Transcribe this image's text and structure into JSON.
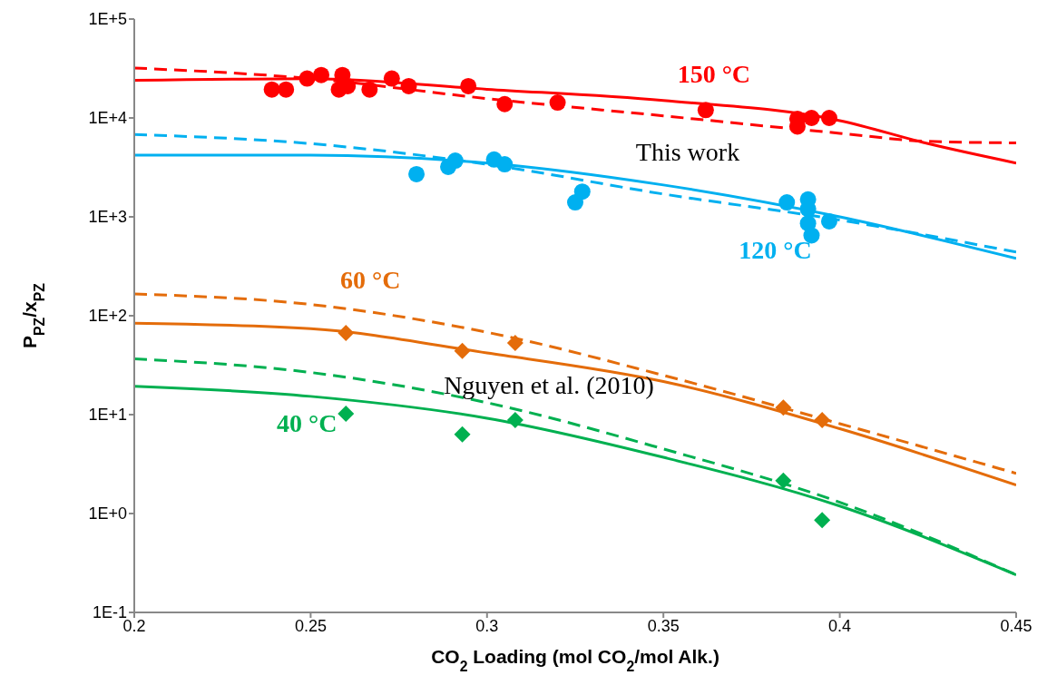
{
  "chart_data": {
    "type": "scatter",
    "xlabel": "CO$_{2}$ Loading (mol CO$_{2}$/mol Alk.)",
    "ylabel": "P$_{PZ}$/x$_{PZ}$",
    "log": "y",
    "grid": false,
    "legend": false,
    "xlim": [
      0.2,
      0.45
    ],
    "xticks": [
      0.2,
      0.25,
      0.3,
      0.35,
      0.4,
      0.45
    ],
    "ylim": [
      0.1,
      100000
    ],
    "yticks": [
      {
        "value": 0.1,
        "label": "1E-1"
      },
      {
        "value": 1,
        "label": "1E+0"
      },
      {
        "value": 10,
        "label": "1E+1"
      },
      {
        "value": 100,
        "label": "1E+2"
      },
      {
        "value": 1000,
        "label": "1E+3"
      },
      {
        "value": 10000,
        "label": "1E+4"
      },
      {
        "value": 100000,
        "label": "1E+5"
      }
    ],
    "annotations": [
      "This work",
      "Nguyen et al. (2010)"
    ],
    "series": [
      {
        "name": "150 °C",
        "color": "#ff0000",
        "marker": "circle",
        "x": [
          0.239,
          0.243,
          0.249,
          0.253,
          0.258,
          0.259,
          0.2605,
          0.2667,
          0.273,
          0.2778,
          0.2947,
          0.305,
          0.32,
          0.362,
          0.388,
          0.388,
          0.392,
          0.397
        ],
        "values": [
          19400,
          19400,
          25000,
          27200,
          19400,
          27200,
          21000,
          19400,
          25000,
          21000,
          21000,
          13800,
          14300,
          12000,
          9800,
          8200,
          10000,
          10000
        ]
      },
      {
        "type": "line",
        "color": "#ff0000",
        "marker": "none",
        "line_style": "solid",
        "x": [
          0.2,
          0.25,
          0.3,
          0.35,
          0.4,
          0.425,
          0.45
        ],
        "values": [
          24000,
          25000,
          19500,
          15000,
          9400,
          5500,
          3500
        ]
      },
      {
        "type": "line",
        "color": "#ff0000",
        "marker": "none",
        "line_style": "dashed",
        "x": [
          0.2,
          0.25,
          0.3,
          0.35,
          0.4,
          0.425,
          0.45
        ],
        "values": [
          32000,
          25000,
          15700,
          10500,
          7000,
          5800,
          5600
        ]
      },
      {
        "name": "120 °C",
        "color": "#00b0f0",
        "marker": "circle",
        "x": [
          0.28,
          0.289,
          0.291,
          0.302,
          0.305,
          0.325,
          0.327,
          0.385,
          0.391,
          0.391,
          0.391,
          0.392,
          0.396,
          0.397
        ],
        "values": [
          2700,
          3200,
          3700,
          3800,
          3400,
          1400,
          1800,
          1400,
          1500,
          1200,
          860,
          650,
          null,
          900
        ]
      },
      {
        "type": "line",
        "color": "#00b0f0",
        "marker": "none",
        "line_style": "solid",
        "x": [
          0.2,
          0.25,
          0.3,
          0.35,
          0.4,
          0.45
        ],
        "values": [
          4200,
          4200,
          3500,
          2100,
          1000,
          380
        ]
      },
      {
        "type": "line",
        "color": "#00b0f0",
        "marker": "none",
        "line_style": "dashed",
        "x": [
          0.2,
          0.25,
          0.3,
          0.35,
          0.4,
          0.45
        ],
        "values": [
          6800,
          5500,
          3400,
          1700,
          930,
          440
        ]
      },
      {
        "name": "60 °C",
        "color": "#e46c0a",
        "marker": "diamond",
        "x": [
          0.26,
          0.293,
          0.308,
          0.384,
          0.395
        ],
        "values": [
          67,
          44,
          53,
          11.8,
          8.8
        ]
      },
      {
        "type": "line",
        "color": "#e46c0a",
        "marker": "none",
        "line_style": "solid",
        "x": [
          0.2,
          0.25,
          0.3,
          0.35,
          0.4,
          0.45
        ],
        "values": [
          84,
          74,
          42,
          21.6,
          7.2,
          1.94
        ]
      },
      {
        "type": "line",
        "color": "#e46c0a",
        "marker": "none",
        "line_style": "dashed",
        "x": [
          0.2,
          0.25,
          0.3,
          0.35,
          0.4,
          0.45
        ],
        "values": [
          166,
          130,
          68,
          25,
          8.1,
          2.55
        ]
      },
      {
        "name": "40 °C",
        "color": "#00b050",
        "marker": "diamond",
        "x": [
          0.26,
          0.293,
          0.308,
          0.384,
          0.395
        ],
        "values": [
          10.2,
          6.3,
          8.8,
          2.15,
          0.86
        ]
      },
      {
        "type": "line",
        "color": "#00b050",
        "marker": "none",
        "line_style": "solid",
        "x": [
          0.2,
          0.25,
          0.3,
          0.35,
          0.4,
          0.45
        ],
        "values": [
          19.4,
          15.3,
          9.2,
          3.7,
          1.19,
          0.24
        ]
      },
      {
        "type": "line",
        "color": "#00b050",
        "marker": "none",
        "line_style": "dashed",
        "x": [
          0.2,
          0.25,
          0.3,
          0.35,
          0.4,
          0.45
        ],
        "values": [
          36.7,
          26.7,
          13.2,
          4.5,
          1.3,
          0.24
        ]
      }
    ]
  }
}
